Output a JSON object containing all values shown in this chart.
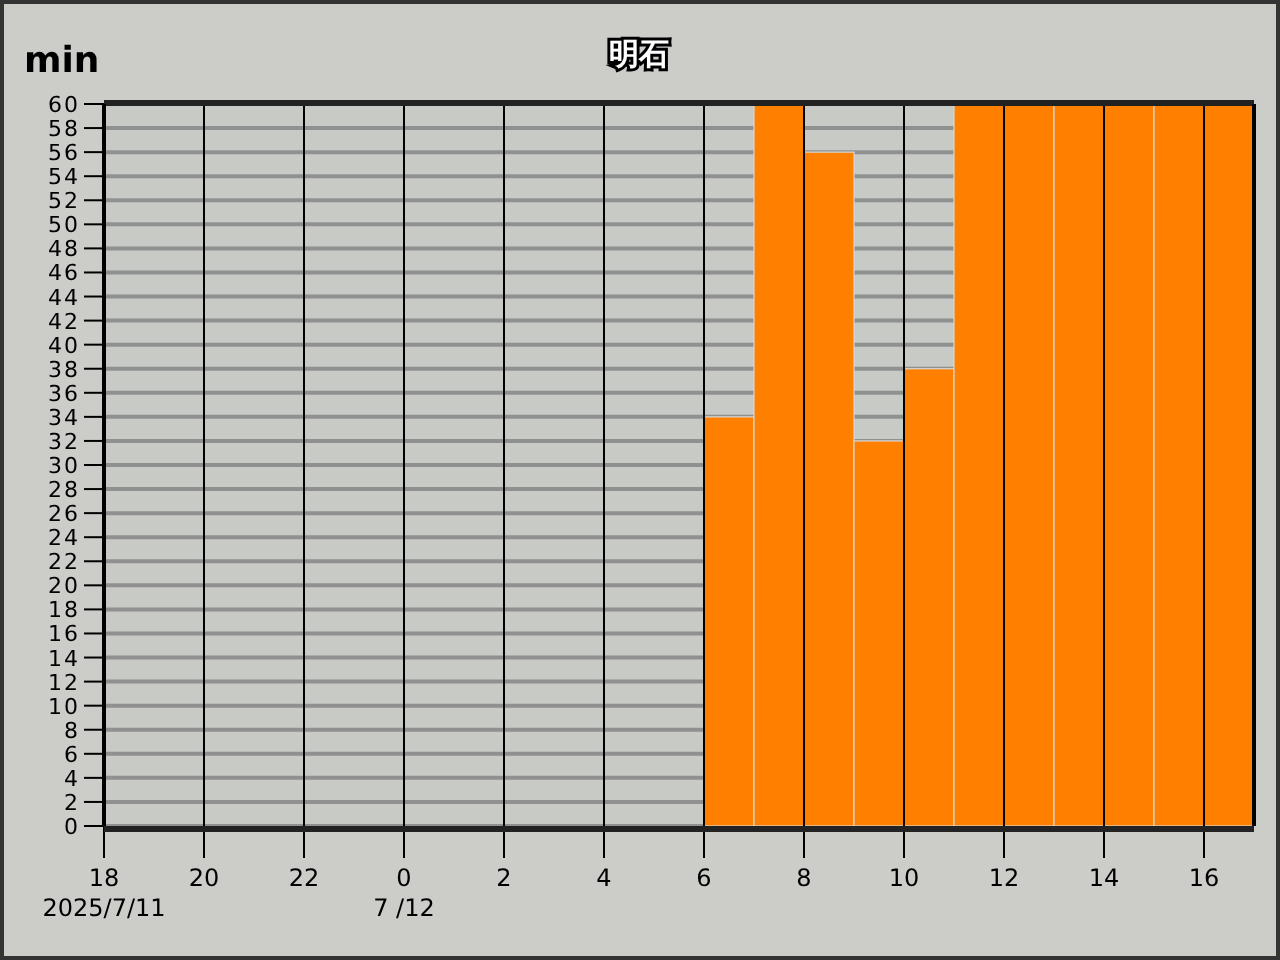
{
  "chart_data": {
    "type": "bar",
    "title": "明石",
    "ylabel": "min",
    "x": [
      "2025-07-11T18:30",
      "2025-07-11T19:30",
      "2025-07-11T20:30",
      "2025-07-11T21:30",
      "2025-07-11T22:30",
      "2025-07-11T23:30",
      "2025-07-12T00:30",
      "2025-07-12T01:30",
      "2025-07-12T02:30",
      "2025-07-12T03:30",
      "2025-07-12T04:30",
      "2025-07-12T05:30",
      "2025-07-12T06:30",
      "2025-07-12T07:30",
      "2025-07-12T08:30",
      "2025-07-12T09:30",
      "2025-07-12T10:30",
      "2025-07-12T11:30",
      "2025-07-12T12:30",
      "2025-07-12T13:30",
      "2025-07-12T14:30",
      "2025-07-12T15:30",
      "2025-07-12T16:30"
    ],
    "values": [
      0,
      0,
      0,
      0,
      0,
      0,
      0,
      0,
      0,
      0,
      0,
      0,
      34,
      60,
      56,
      32,
      38,
      60,
      60,
      60,
      60,
      60,
      60
    ],
    "color": "#ff8000",
    "xlim": [
      "2025-07-11T18:00",
      "2025-07-12T17:00"
    ],
    "xticks": [
      {
        "value": "2025-07-11T18:00",
        "label": "18\n2025/7/11"
      },
      {
        "value": "2025-07-11T20:00",
        "label": "20"
      },
      {
        "value": "2025-07-11T22:00",
        "label": "22"
      },
      {
        "value": "2025-07-12T00:00",
        "label": "0\n7 /12"
      },
      {
        "value": "2025-07-12T02:00",
        "label": "2"
      },
      {
        "value": "2025-07-12T04:00",
        "label": "4"
      },
      {
        "value": "2025-07-12T06:00",
        "label": "6"
      },
      {
        "value": "2025-07-12T08:00",
        "label": "8"
      },
      {
        "value": "2025-07-12T10:00",
        "label": "10"
      },
      {
        "value": "2025-07-12T12:00",
        "label": "12"
      },
      {
        "value": "2025-07-12T14:00",
        "label": "14"
      },
      {
        "value": "2025-07-12T16:00",
        "label": "16"
      }
    ],
    "ylim": [
      0,
      60
    ],
    "yticks": [
      0,
      2,
      4,
      6,
      8,
      10,
      12,
      14,
      16,
      18,
      20,
      22,
      24,
      26,
      28,
      30,
      32,
      34,
      36,
      38,
      40,
      42,
      44,
      46,
      48,
      50,
      52,
      54,
      56,
      58,
      60
    ],
    "grid": true
  }
}
